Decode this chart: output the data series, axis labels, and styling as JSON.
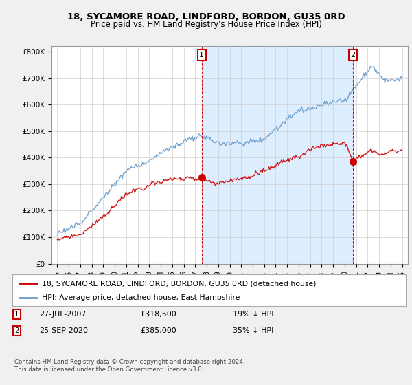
{
  "title1": "18, SYCAMORE ROAD, LINDFORD, BORDON, GU35 0RD",
  "title2": "Price paid vs. HM Land Registry's House Price Index (HPI)",
  "background_color": "#f0f0f0",
  "plot_bg_color": "#ffffff",
  "hpi_color": "#6699cc",
  "price_color": "#cc0000",
  "vline_color": "#cc0000",
  "shade_color": "#ddeeff",
  "transaction1": {
    "date_num": 2007.57,
    "price": 318500,
    "label": "1",
    "date_str": "27-JUL-2007",
    "pct": "19%"
  },
  "transaction2": {
    "date_num": 2020.73,
    "price": 385000,
    "label": "2",
    "date_str": "25-SEP-2020",
    "pct": "35%"
  },
  "yticks": [
    0,
    100000,
    200000,
    300000,
    400000,
    500000,
    600000,
    700000,
    800000
  ],
  "ytick_labels": [
    "£0",
    "£100K",
    "£200K",
    "£300K",
    "£400K",
    "£500K",
    "£600K",
    "£700K",
    "£800K"
  ],
  "ylim": [
    0,
    820000
  ],
  "xlim_start": 1994.5,
  "xlim_end": 2025.5,
  "footer1": "Contains HM Land Registry data © Crown copyright and database right 2024.",
  "footer2": "This data is licensed under the Open Government Licence v3.0.",
  "legend_label1": "18, SYCAMORE ROAD, LINDFORD, BORDON, GU35 0RD (detached house)",
  "legend_label2": "HPI: Average price, detached house, East Hampshire"
}
